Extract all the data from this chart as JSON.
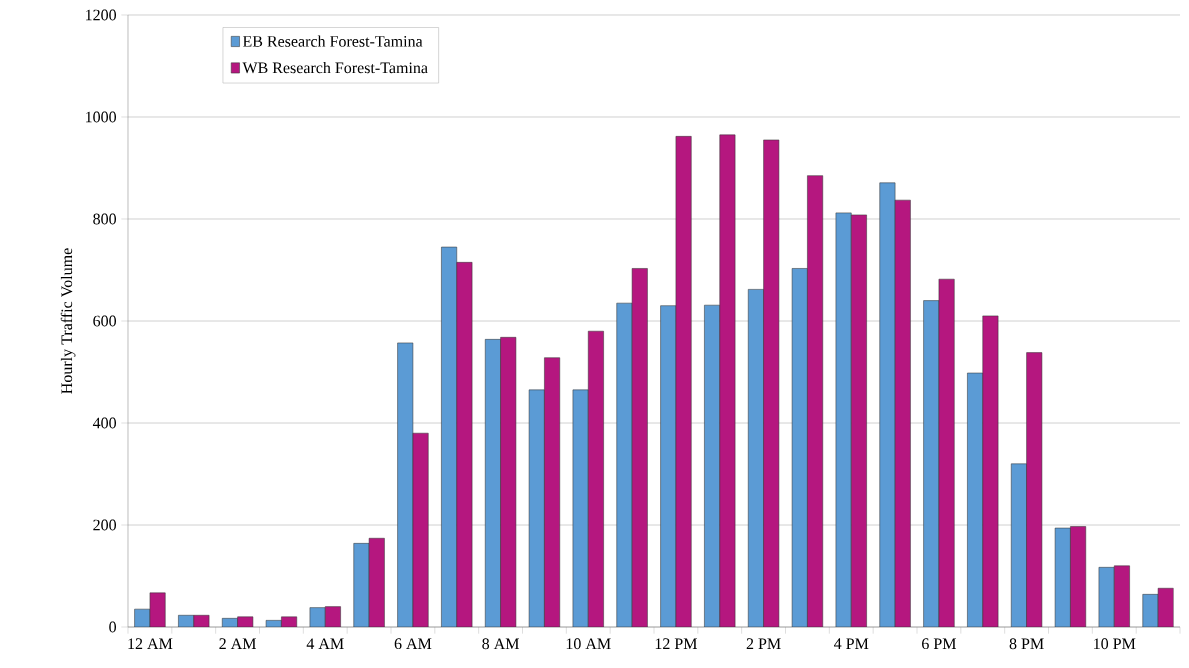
{
  "chart_data": {
    "type": "bar",
    "ylabel": "Hourly Traffic Volume",
    "categories": [
      "12 AM",
      null,
      "2 AM",
      null,
      "4 AM",
      null,
      "6 AM",
      null,
      "8 AM",
      null,
      "10 AM",
      null,
      "12 PM",
      null,
      "2 PM",
      null,
      "4 PM",
      null,
      "6 PM",
      null,
      "8 PM",
      null,
      "10 PM",
      null
    ],
    "series": [
      {
        "name": "EB Research Forest-Tamina",
        "color": "#5b9bd5",
        "values": [
          35,
          23,
          17,
          13,
          38,
          164,
          557,
          745,
          564,
          465,
          465,
          635,
          630,
          631,
          662,
          703,
          812,
          871,
          640,
          498,
          320,
          194,
          117,
          64
        ]
      },
      {
        "name": "WB Research Forest-Tamina",
        "color": "#b5177f",
        "values": [
          67,
          23,
          20,
          20,
          40,
          174,
          380,
          715,
          568,
          528,
          580,
          703,
          962,
          965,
          955,
          885,
          808,
          837,
          682,
          610,
          538,
          197,
          120,
          76
        ]
      }
    ],
    "ylim": [
      0,
      1200
    ],
    "yticks": [
      0,
      200,
      400,
      600,
      800,
      1000,
      1200
    ],
    "grid": "y",
    "legend": "top left"
  }
}
